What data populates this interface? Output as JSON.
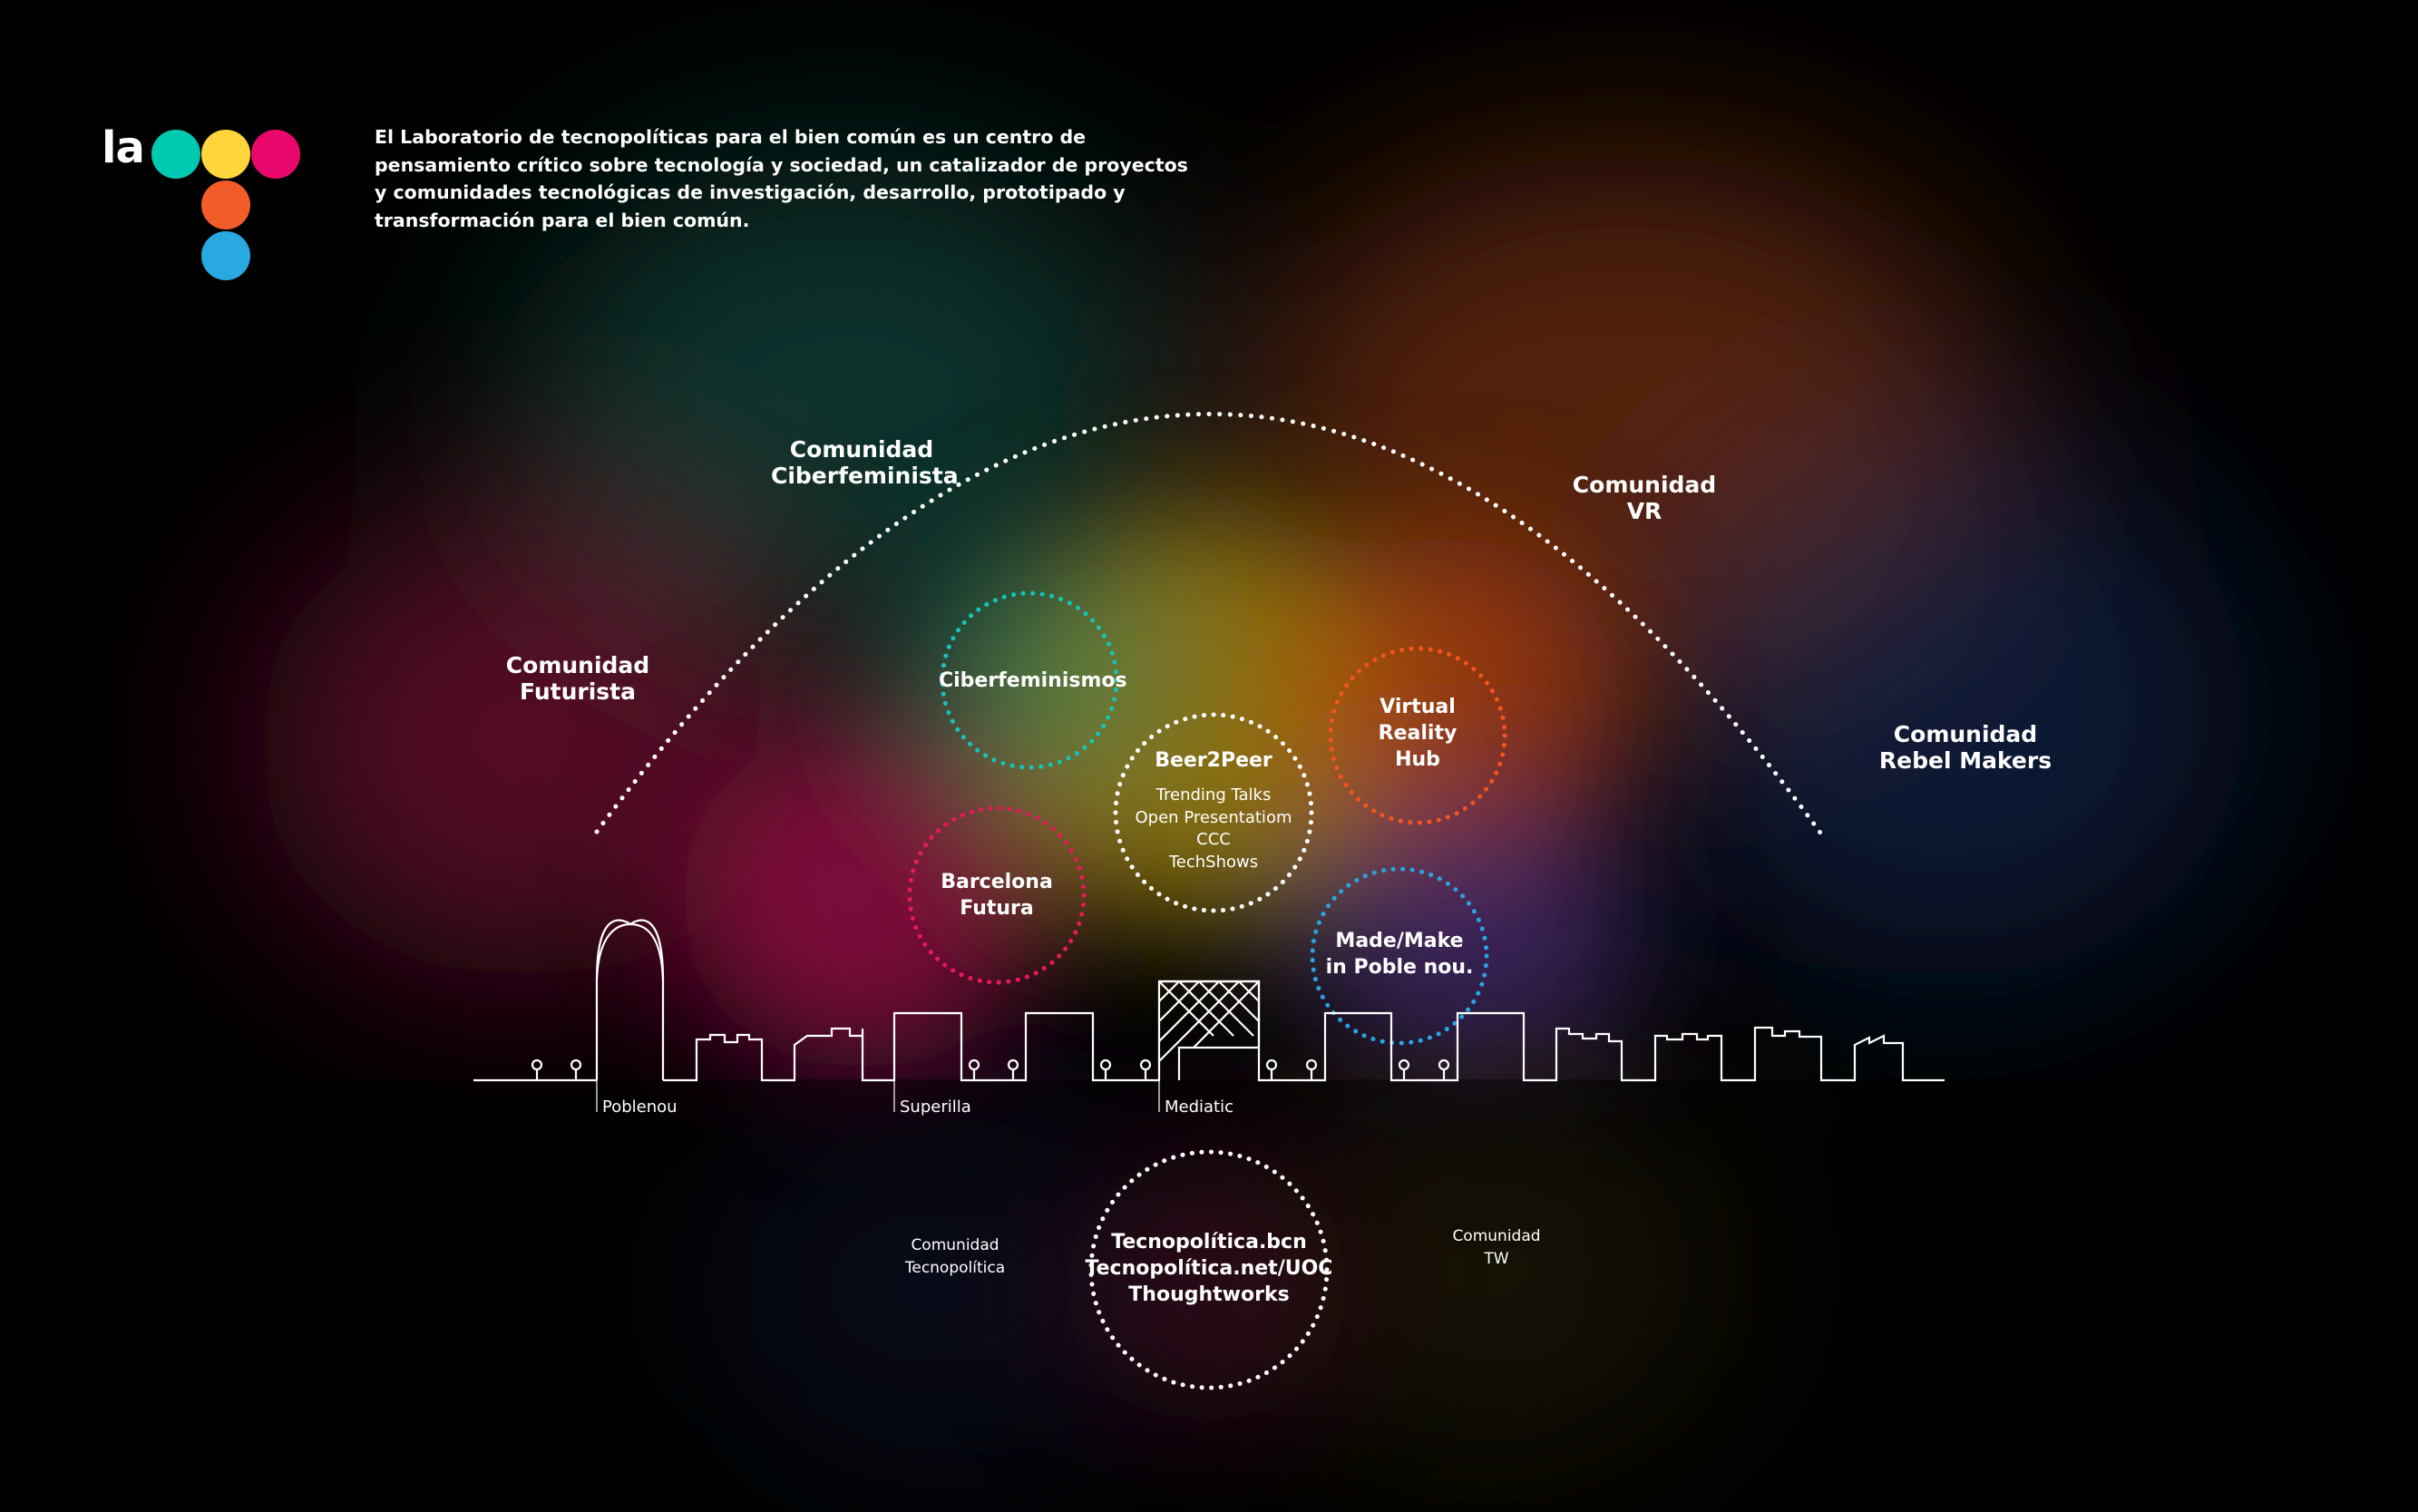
{
  "logo": {
    "wordmark": "la",
    "dot_colors": [
      "#00c9b1",
      "#ffd53b",
      "#e8086c",
      "#f25c28",
      "#29a9e1"
    ]
  },
  "intro_lines": [
    "El Laboratorio de tecnopolíticas para el bien común es un centro de",
    "pensamiento crítico sobre tecnología y sociedad, un catalizador de proyectos",
    "y comunidades tecnológicas de investigación, desarrollo, prototipado y",
    "transformación para el bien común."
  ],
  "communities": {
    "ciberfeminista": [
      "Comunidad",
      "Ciberfeminista"
    ],
    "vr": [
      "Comunidad",
      "VR"
    ],
    "futurista": [
      "Comunidad",
      "Futurista"
    ],
    "rebel_makers": [
      "Comunidad",
      "Rebel Makers"
    ],
    "tecnopolitica": [
      "Comunidad",
      "Tecnopolítica"
    ],
    "tw": [
      "Comunidad",
      "TW"
    ]
  },
  "circles": {
    "ciberfeminismos": {
      "lines": [
        "Ciberfeminismos"
      ],
      "color": "#15c4b9"
    },
    "beer2peer": {
      "title": "Beer2Peer",
      "items": [
        "Trending Talks",
        "Open Presentatiom",
        "CCC",
        "TechShows"
      ],
      "color": "#ffffff"
    },
    "virtual_reality": {
      "lines": [
        "Virtual",
        "Reality",
        "Hub"
      ],
      "color": "#f4541f"
    },
    "barcelona_futura": {
      "lines": [
        "Barcelona",
        "Futura"
      ],
      "color": "#e8185c"
    },
    "made_make": {
      "lines": [
        "Made/Make",
        "in Poble nou."
      ],
      "color": "#2aa3e0"
    },
    "tecnopolitica": {
      "lines": [
        "Tecnopolítica.bcn",
        "Tecnopolítica.net/UOC",
        "Thoughtworks"
      ],
      "color": "#ffffff"
    }
  },
  "locations": {
    "poblenou": "Poblenou",
    "superilla": "Superilla",
    "mediatic": "Mediatic"
  },
  "glow_colors": {
    "teal": "#0e6b5c",
    "orange": "#a8420e",
    "magenta": "#b01050",
    "yellow": "#b89a10",
    "blue": "#2a3c8a"
  }
}
